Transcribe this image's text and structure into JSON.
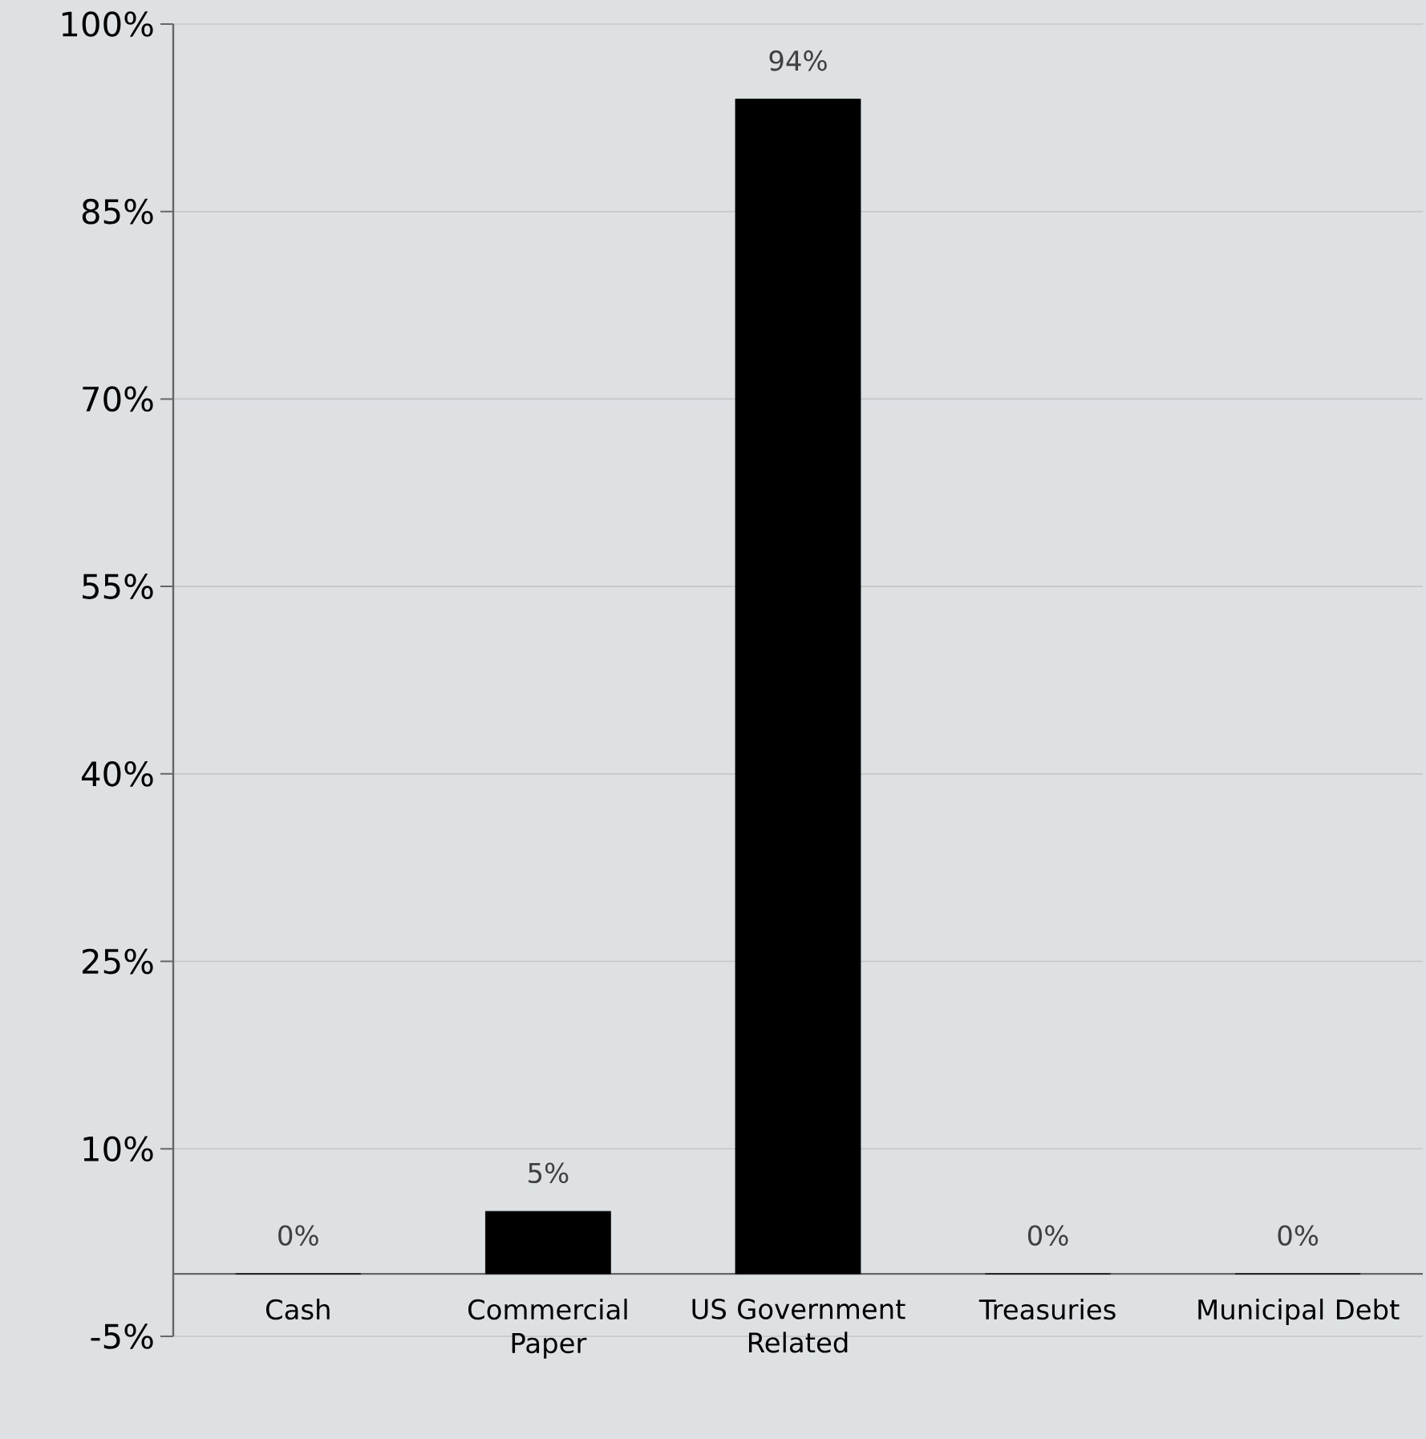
{
  "chart_data": {
    "type": "bar",
    "categories": [
      "Cash",
      "Commercial Paper",
      "US Government Related",
      "Treasuries",
      "Municipal Debt"
    ],
    "values": [
      0,
      5,
      94,
      0,
      0
    ],
    "value_labels": [
      "0%",
      "5%",
      "94%",
      "0%",
      "0%"
    ],
    "color": "#000000",
    "ylim": [
      -5,
      100
    ],
    "yticks": [
      {
        "value": -5,
        "label": "-5%"
      },
      {
        "value": 10,
        "label": "10%"
      },
      {
        "value": 25,
        "label": "25%"
      },
      {
        "value": 40,
        "label": "40%"
      },
      {
        "value": 55,
        "label": "55%"
      },
      {
        "value": 70,
        "label": "70%"
      },
      {
        "value": 85,
        "label": "85%"
      },
      {
        "value": 100,
        "label": "100%"
      }
    ],
    "grid": "y"
  }
}
